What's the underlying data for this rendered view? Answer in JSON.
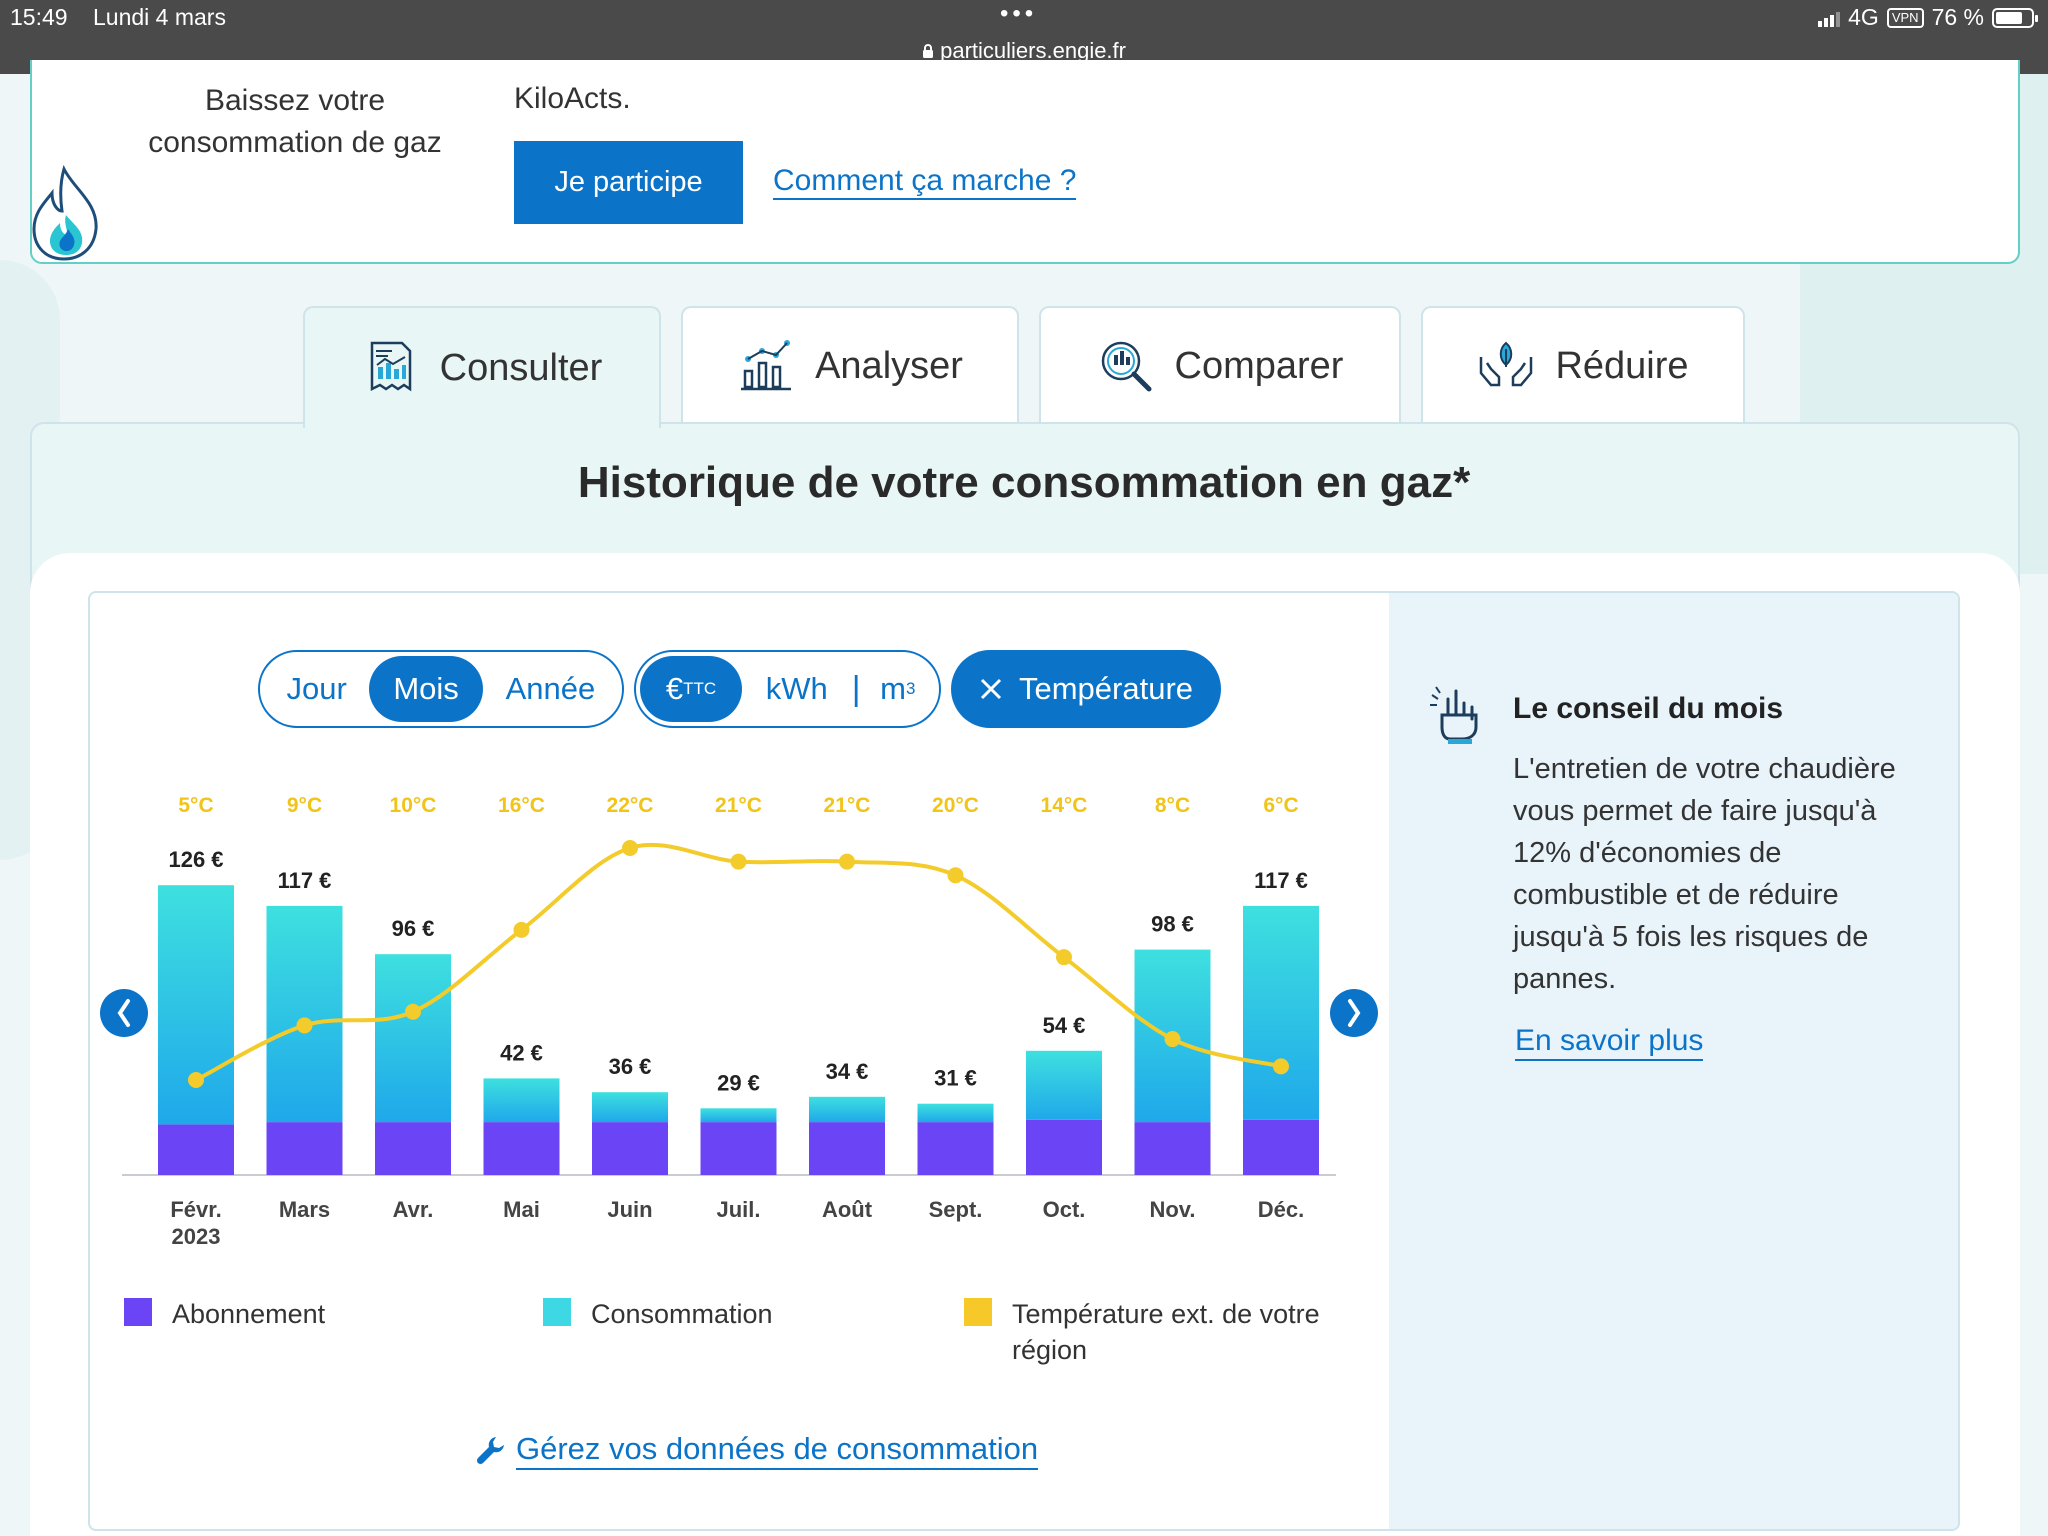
{
  "status_bar": {
    "time": "15:49",
    "date": "Lundi 4 mars",
    "url": "particuliers.engie.fr",
    "network": "4G",
    "vpn": "VPN",
    "battery": "76 %",
    "battery_level": 0.76
  },
  "top_card": {
    "gas_caption": "Baissez votre consommation de gaz",
    "kilo_text": "KiloActs.",
    "participate_button": "Je participe",
    "how_link": "Comment ça marche ?"
  },
  "tabs": [
    {
      "label": "Consulter",
      "icon": "report-chart-icon",
      "active": true
    },
    {
      "label": "Analyser",
      "icon": "analytics-icon",
      "active": false
    },
    {
      "label": "Comparer",
      "icon": "magnifier-chart-icon",
      "active": false
    },
    {
      "label": "Réduire",
      "icon": "hands-leaf-icon",
      "active": false
    }
  ],
  "main_title": "Historique de votre consommation en gaz*",
  "period_toggle": {
    "options": [
      "Jour",
      "Mois",
      "Année"
    ],
    "selected": "Mois"
  },
  "unit_toggle": {
    "euro": "€",
    "euro_sup": "TTC",
    "kwh": "kWh",
    "separator": "|",
    "m3": "m",
    "m3_sup": "3",
    "selected": "€"
  },
  "temperature_button": {
    "label": "Température",
    "icon": "close-icon"
  },
  "chart_data": {
    "type": "bar",
    "categories": [
      "Févr.",
      "Mars",
      "Avr.",
      "Mai",
      "Juin",
      "Juil.",
      "Août",
      "Sept.",
      "Oct.",
      "Nov.",
      "Déc."
    ],
    "category_sublabels": [
      "2023",
      "",
      "",
      "",
      "",
      "",
      "",
      "",
      "",
      "",
      ""
    ],
    "value_labels": [
      "126 €",
      "117 €",
      "96 €",
      "42 €",
      "36 €",
      "29 €",
      "34 €",
      "31 €",
      "54 €",
      "98 €",
      "117 €"
    ],
    "temperature_labels": [
      "5°C",
      "9°C",
      "10°C",
      "16°C",
      "22°C",
      "21°C",
      "21°C",
      "20°C",
      "14°C",
      "8°C",
      "6°C"
    ],
    "series": [
      {
        "name": "Abonnement",
        "values": [
          22,
          23,
          23,
          23,
          23,
          23,
          23,
          23,
          24,
          23,
          24
        ],
        "color": "#6b45f5"
      },
      {
        "name": "Consommation",
        "values": [
          104,
          94,
          73,
          19,
          13,
          6,
          11,
          8,
          30,
          75,
          93
        ],
        "color": "#2bc9e0"
      },
      {
        "name": "Température ext. de votre région",
        "values": [
          5,
          9,
          10,
          16,
          22,
          21,
          21,
          20,
          14,
          8,
          6
        ],
        "color": "#f3cb2b",
        "type": "line"
      }
    ],
    "totals": [
      126,
      117,
      96,
      42,
      36,
      29,
      34,
      31,
      54,
      98,
      117
    ],
    "ylim": [
      0,
      130
    ],
    "temp_range": [
      5,
      22
    ],
    "stacked": true,
    "grid": false
  },
  "legend": [
    {
      "label": "Abonnement",
      "color": "#6b45f5"
    },
    {
      "label": "Consommation",
      "color": "#3ed8e4"
    },
    {
      "label": "Température ext. de votre région",
      "color": "#f6c828"
    }
  ],
  "manage_link": "Gérez vos données de consommation",
  "tip": {
    "title": "Le conseil du mois",
    "text": "L'entretien de votre chaudière vous permet de faire jusqu'à 12% d'économies de combustible et de réduire jusqu'à 5 fois les risques de pannes.",
    "link": "En savoir plus"
  },
  "colors": {
    "primary": "#0b74c9",
    "accent_border": "#63cfc6",
    "temp_label": "#f0c419"
  }
}
